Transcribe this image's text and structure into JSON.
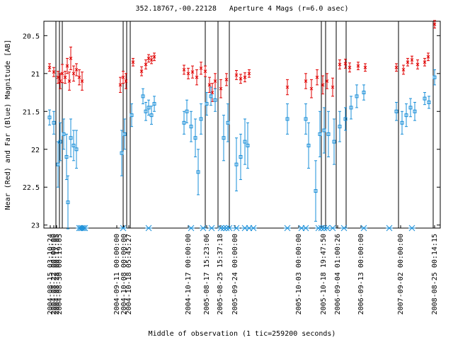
{
  "chart_data": {
    "type": "scatter",
    "title": "352.18767,-00.22128   Aperture 4 Mags (r=6.0 asec)",
    "x_label": "Middle of observation (1 tic=259200 seconds)",
    "y_label": "Near (Red) and Far (Blue) Magnitude [AB]",
    "xlim": [
      0,
      560
    ],
    "ylim": [
      23.04,
      20.31
    ],
    "yticks": [
      20.5,
      21,
      21.5,
      22,
      22.5,
      23
    ],
    "xticks": [
      {
        "value": 9,
        "label": "2004-08-15 03:10:24"
      },
      {
        "value": 14,
        "label": "2004-08-22 00:00:00"
      },
      {
        "value": 18,
        "label": "2004-08-28 00:17:05"
      },
      {
        "value": 22,
        "label": "2004-08-30 00:19:05"
      },
      {
        "value": 103,
        "label": "2004-09-11 00:00:00"
      },
      {
        "value": 113,
        "label": "2004-10-08 00:00:00"
      },
      {
        "value": 120,
        "label": "2004-10-18 05:45:27"
      },
      {
        "value": 204,
        "label": "2004-10-17 00:00:00"
      },
      {
        "value": 230,
        "label": "2005-08-17 15:23:06"
      },
      {
        "value": 249,
        "label": "2005-08-25 15:37:18"
      },
      {
        "value": 270,
        "label": "2005-09-24 00:00:00"
      },
      {
        "value": 360,
        "label": "2005-10-03 00:00:00"
      },
      {
        "value": 395,
        "label": "2005-10-18 19:47:50"
      },
      {
        "value": 415,
        "label": "2006-09-04 01:00:26"
      },
      {
        "value": 448,
        "label": "2006-09-13 00:00:00"
      },
      {
        "value": 504,
        "label": "2007-09-02 00:00:00"
      },
      {
        "value": 552,
        "label": "2008-08-25 00:14:15"
      }
    ],
    "segment_boundaries": [
      17,
      22,
      26,
      112,
      117,
      122,
      228,
      246,
      262,
      392,
      398,
      413,
      427,
      501,
      550
    ],
    "observation_marks": [
      50,
      52,
      54,
      56,
      58,
      112,
      148,
      208,
      225,
      237,
      250,
      254,
      258,
      262,
      272,
      284,
      290,
      296,
      344,
      364,
      370,
      388,
      392,
      396,
      400,
      408,
      424,
      452,
      488,
      520
    ],
    "series": [
      {
        "name": "Near",
        "color": "#e00000",
        "x": [
          8,
          14,
          20,
          23,
          26,
          30,
          33,
          36,
          38,
          42,
          46,
          50,
          54,
          108,
          112,
          116,
          126,
          138,
          144,
          148,
          152,
          156,
          198,
          204,
          210,
          216,
          222,
          228,
          234,
          238,
          242,
          250,
          258,
          272,
          278,
          284,
          290,
          344,
          370,
          378,
          386,
          394,
          400,
          408,
          418,
          426,
          432,
          444,
          454,
          498,
          508,
          514,
          520,
          528,
          538,
          543,
          552
        ],
        "values": [
          20.92,
          20.98,
          21.05,
          21.1,
          21.0,
          21.05,
          20.9,
          21.1,
          20.8,
          21.0,
          20.95,
          21.05,
          21.1,
          21.15,
          21.05,
          21.1,
          20.85,
          20.97,
          20.88,
          20.8,
          20.82,
          20.78,
          20.95,
          21.0,
          20.98,
          21.05,
          20.93,
          20.97,
          21.15,
          21.25,
          21.1,
          21.2,
          21.08,
          21.02,
          21.07,
          21.05,
          21.0,
          21.18,
          21.1,
          21.2,
          21.05,
          21.15,
          21.1,
          21.18,
          20.88,
          20.87,
          20.92,
          20.9,
          20.92,
          20.92,
          20.95,
          20.85,
          20.82,
          20.88,
          20.85,
          20.78,
          20.35
        ],
        "errors": [
          0.05,
          0.06,
          0.08,
          0.1,
          0.12,
          0.08,
          0.1,
          0.12,
          0.15,
          0.1,
          0.08,
          0.1,
          0.12,
          0.1,
          0.08,
          0.1,
          0.05,
          0.06,
          0.06,
          0.05,
          0.05,
          0.05,
          0.06,
          0.07,
          0.08,
          0.1,
          0.08,
          0.07,
          0.1,
          0.12,
          0.1,
          0.12,
          0.08,
          0.06,
          0.06,
          0.06,
          0.05,
          0.1,
          0.1,
          0.12,
          0.1,
          0.12,
          0.1,
          0.12,
          0.06,
          0.06,
          0.06,
          0.05,
          0.05,
          0.05,
          0.06,
          0.05,
          0.05,
          0.06,
          0.05,
          0.05,
          0.05
        ]
      },
      {
        "name": "Far",
        "color": "#1a8fd8",
        "x": [
          8,
          14,
          20,
          23,
          28,
          32,
          34,
          38,
          42,
          46,
          110,
          114,
          124,
          140,
          144,
          148,
          152,
          156,
          198,
          202,
          208,
          214,
          218,
          222,
          230,
          236,
          242,
          254,
          260,
          272,
          278,
          284,
          288,
          344,
          370,
          374,
          384,
          390,
          396,
          402,
          410,
          418,
          426,
          434,
          442,
          452,
          498,
          506,
          512,
          518,
          524,
          538,
          544,
          552
        ],
        "values": [
          21.58,
          21.65,
          22.2,
          21.9,
          21.8,
          22.1,
          22.7,
          21.85,
          21.95,
          22.0,
          22.05,
          21.8,
          21.55,
          21.3,
          21.5,
          21.45,
          21.55,
          21.4,
          21.65,
          21.5,
          21.7,
          21.85,
          22.3,
          21.6,
          21.4,
          21.3,
          21.35,
          21.85,
          21.65,
          22.2,
          22.1,
          21.9,
          21.95,
          21.6,
          21.6,
          21.95,
          22.55,
          21.8,
          21.75,
          21.8,
          21.9,
          21.7,
          21.6,
          21.45,
          21.3,
          21.25,
          21.5,
          21.65,
          21.55,
          21.45,
          21.5,
          21.33,
          21.38,
          21.05
        ],
        "errors": [
          0.1,
          0.15,
          0.3,
          0.25,
          0.2,
          0.3,
          0.35,
          0.25,
          0.2,
          0.25,
          0.3,
          0.2,
          0.15,
          0.1,
          0.12,
          0.1,
          0.12,
          0.1,
          0.15,
          0.15,
          0.2,
          0.25,
          0.3,
          0.2,
          0.15,
          0.12,
          0.15,
          0.3,
          0.25,
          0.35,
          0.3,
          0.3,
          0.3,
          0.2,
          0.2,
          0.3,
          0.4,
          0.3,
          0.3,
          0.3,
          0.3,
          0.2,
          0.15,
          0.15,
          0.15,
          0.1,
          0.12,
          0.15,
          0.15,
          0.12,
          0.12,
          0.08,
          0.08,
          0.1
        ]
      }
    ]
  }
}
